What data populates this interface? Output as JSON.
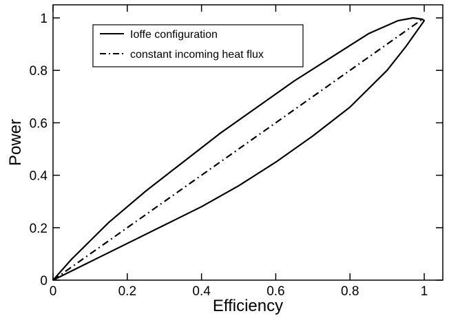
{
  "chart_data": {
    "type": "line",
    "title": "",
    "xlabel": "Efficiency",
    "ylabel": "Power",
    "xlim": [
      0,
      1.05
    ],
    "ylim": [
      0,
      1.05
    ],
    "xticks": [
      0,
      0.2,
      0.4,
      0.6,
      0.8,
      1
    ],
    "yticks": [
      0,
      0.2,
      0.4,
      0.6,
      0.8,
      1
    ],
    "xtick_labels": [
      "0",
      "0.2",
      "0.4",
      "0.6",
      "0.8",
      "1"
    ],
    "ytick_labels": [
      "0",
      "0.2",
      "0.4",
      "0.6",
      "0.8",
      "1"
    ],
    "grid": false,
    "legend_position": "top-left",
    "series": [
      {
        "name": "Ioffe configuration",
        "line_style": "solid",
        "color": "#000000",
        "x": [
          0,
          0.1,
          0.2,
          0.3,
          0.4,
          0.5,
          0.6,
          0.7,
          0.8,
          0.9,
          0.95,
          0.98,
          0.995,
          1.0,
          0.995,
          0.97,
          0.93,
          0.85,
          0.75,
          0.65,
          0.55,
          0.45,
          0.35,
          0.25,
          0.15,
          0.05,
          0
        ],
        "y": [
          0,
          0.07,
          0.14,
          0.21,
          0.28,
          0.36,
          0.45,
          0.55,
          0.66,
          0.8,
          0.89,
          0.95,
          0.98,
          0.99,
          0.995,
          1.0,
          0.99,
          0.94,
          0.85,
          0.76,
          0.66,
          0.56,
          0.45,
          0.34,
          0.22,
          0.08,
          0
        ]
      },
      {
        "name": "constant incoming heat flux",
        "line_style": "dash-dot",
        "color": "#000000",
        "x": [
          0,
          1
        ],
        "y": [
          0,
          1
        ]
      }
    ]
  }
}
